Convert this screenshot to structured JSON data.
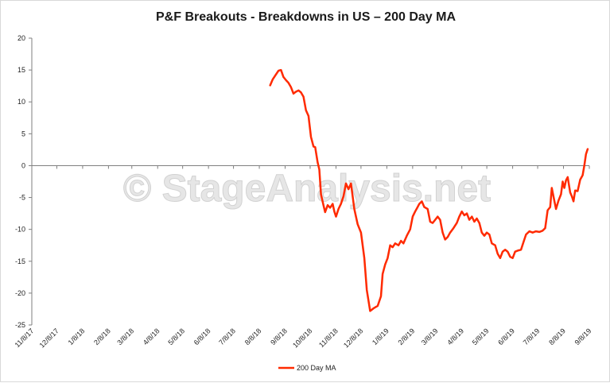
{
  "chart_data": {
    "type": "line",
    "title": "P&F Breakouts - Breakdowns in US – 200 Day MA",
    "watermark": "© StageAnalysis.net",
    "ylim": [
      -25,
      20
    ],
    "ytick_values": [
      20,
      15,
      10,
      5,
      0,
      -5,
      -10,
      -15,
      -20,
      -25
    ],
    "xlim": [
      "2017-11-08",
      "2019-09-08"
    ],
    "xtick_labels": [
      "11/8/17",
      "12/8/17",
      "1/8/18",
      "2/8/18",
      "3/8/18",
      "4/8/18",
      "5/8/18",
      "6/8/18",
      "7/8/18",
      "8/8/18",
      "9/8/18",
      "10/8/18",
      "11/8/18",
      "12/8/18",
      "1/8/19",
      "2/8/19",
      "3/8/19",
      "4/8/19",
      "5/8/19",
      "6/8/19",
      "7/8/19",
      "8/8/19",
      "9/8/19"
    ],
    "legend_position": "bottom",
    "gridlines": false,
    "series": [
      {
        "name": "200 Day MA",
        "color": "#ff2a00",
        "points": [
          [
            "2018-08-21",
            12.6
          ],
          [
            "2018-08-24",
            13.5
          ],
          [
            "2018-08-28",
            14.3
          ],
          [
            "2018-08-31",
            14.9
          ],
          [
            "2018-09-03",
            15.0
          ],
          [
            "2018-09-06",
            13.9
          ],
          [
            "2018-09-09",
            13.4
          ],
          [
            "2018-09-12",
            13.0
          ],
          [
            "2018-09-15",
            12.3
          ],
          [
            "2018-09-18",
            11.3
          ],
          [
            "2018-09-21",
            11.6
          ],
          [
            "2018-09-24",
            11.8
          ],
          [
            "2018-09-27",
            11.5
          ],
          [
            "2018-09-30",
            10.8
          ],
          [
            "2018-10-03",
            8.7
          ],
          [
            "2018-10-06",
            7.8
          ],
          [
            "2018-10-09",
            4.5
          ],
          [
            "2018-10-12",
            3.0
          ],
          [
            "2018-10-14",
            2.9
          ],
          [
            "2018-10-17",
            0.5
          ],
          [
            "2018-10-19",
            -0.6
          ],
          [
            "2018-10-21",
            -4.5
          ],
          [
            "2018-10-24",
            -6.2
          ],
          [
            "2018-10-26",
            -7.3
          ],
          [
            "2018-10-29",
            -6.2
          ],
          [
            "2018-11-01",
            -6.6
          ],
          [
            "2018-11-04",
            -6.0
          ],
          [
            "2018-11-06",
            -7.2
          ],
          [
            "2018-11-08",
            -8.0
          ],
          [
            "2018-11-11",
            -6.8
          ],
          [
            "2018-11-14",
            -6.0
          ],
          [
            "2018-11-17",
            -4.8
          ],
          [
            "2018-11-20",
            -2.8
          ],
          [
            "2018-11-23",
            -3.7
          ],
          [
            "2018-11-26",
            -2.8
          ],
          [
            "2018-11-30",
            -6.8
          ],
          [
            "2018-12-04",
            -9.2
          ],
          [
            "2018-12-08",
            -10.5
          ],
          [
            "2018-12-12",
            -14.5
          ],
          [
            "2018-12-15",
            -19.5
          ],
          [
            "2018-12-19",
            -22.8
          ],
          [
            "2018-12-23",
            -22.4
          ],
          [
            "2018-12-28",
            -22.0
          ],
          [
            "2019-01-01",
            -20.5
          ],
          [
            "2019-01-03",
            -17.0
          ],
          [
            "2019-01-06",
            -15.5
          ],
          [
            "2019-01-09",
            -14.5
          ],
          [
            "2019-01-12",
            -12.5
          ],
          [
            "2019-01-15",
            -12.8
          ],
          [
            "2019-01-18",
            -12.2
          ],
          [
            "2019-01-22",
            -12.5
          ],
          [
            "2019-01-25",
            -11.8
          ],
          [
            "2019-01-28",
            -12.2
          ],
          [
            "2019-02-01",
            -11.0
          ],
          [
            "2019-02-05",
            -10.0
          ],
          [
            "2019-02-08",
            -8.0
          ],
          [
            "2019-02-11",
            -7.2
          ],
          [
            "2019-02-14",
            -6.5
          ],
          [
            "2019-02-16",
            -6.0
          ],
          [
            "2019-02-19",
            -5.6
          ],
          [
            "2019-02-22",
            -6.5
          ],
          [
            "2019-02-26",
            -6.8
          ],
          [
            "2019-03-01",
            -8.8
          ],
          [
            "2019-03-04",
            -9.0
          ],
          [
            "2019-03-07",
            -8.5
          ],
          [
            "2019-03-10",
            -8.0
          ],
          [
            "2019-03-13",
            -8.5
          ],
          [
            "2019-03-16",
            -10.5
          ],
          [
            "2019-03-19",
            -11.6
          ],
          [
            "2019-03-22",
            -11.2
          ],
          [
            "2019-03-25",
            -10.5
          ],
          [
            "2019-03-29",
            -9.8
          ],
          [
            "2019-04-02",
            -9.0
          ],
          [
            "2019-04-05",
            -8.0
          ],
          [
            "2019-04-08",
            -7.2
          ],
          [
            "2019-04-11",
            -7.8
          ],
          [
            "2019-04-14",
            -7.5
          ],
          [
            "2019-04-17",
            -8.5
          ],
          [
            "2019-04-20",
            -8.0
          ],
          [
            "2019-04-23",
            -8.8
          ],
          [
            "2019-04-26",
            -8.3
          ],
          [
            "2019-04-29",
            -9.0
          ],
          [
            "2019-05-02",
            -10.5
          ],
          [
            "2019-05-05",
            -11.0
          ],
          [
            "2019-05-08",
            -10.5
          ],
          [
            "2019-05-11",
            -10.8
          ],
          [
            "2019-05-14",
            -12.2
          ],
          [
            "2019-05-18",
            -12.5
          ],
          [
            "2019-05-21",
            -13.8
          ],
          [
            "2019-05-24",
            -14.5
          ],
          [
            "2019-05-27",
            -13.5
          ],
          [
            "2019-05-30",
            -13.2
          ],
          [
            "2019-06-02",
            -13.5
          ],
          [
            "2019-06-05",
            -14.3
          ],
          [
            "2019-06-08",
            -14.5
          ],
          [
            "2019-06-11",
            -13.5
          ],
          [
            "2019-06-15",
            -13.3
          ],
          [
            "2019-06-18",
            -13.2
          ],
          [
            "2019-06-21",
            -12.0
          ],
          [
            "2019-06-24",
            -10.8
          ],
          [
            "2019-06-28",
            -10.3
          ],
          [
            "2019-07-02",
            -10.5
          ],
          [
            "2019-07-06",
            -10.3
          ],
          [
            "2019-07-10",
            -10.4
          ],
          [
            "2019-07-14",
            -10.2
          ],
          [
            "2019-07-17",
            -9.8
          ],
          [
            "2019-07-20",
            -7.0
          ],
          [
            "2019-07-23",
            -6.5
          ],
          [
            "2019-07-25",
            -3.5
          ],
          [
            "2019-07-28",
            -5.5
          ],
          [
            "2019-07-30",
            -6.8
          ],
          [
            "2019-08-02",
            -5.5
          ],
          [
            "2019-08-05",
            -4.5
          ],
          [
            "2019-08-07",
            -2.5
          ],
          [
            "2019-08-09",
            -3.5
          ],
          [
            "2019-08-11",
            -2.3
          ],
          [
            "2019-08-13",
            -1.8
          ],
          [
            "2019-08-16",
            -4.2
          ],
          [
            "2019-08-18",
            -4.8
          ],
          [
            "2019-08-20",
            -5.6
          ],
          [
            "2019-08-22",
            -3.9
          ],
          [
            "2019-08-25",
            -4.0
          ],
          [
            "2019-08-28",
            -2.2
          ],
          [
            "2019-08-31",
            -1.5
          ],
          [
            "2019-09-02",
            0.0
          ],
          [
            "2019-09-04",
            1.8
          ],
          [
            "2019-09-06",
            2.6
          ]
        ]
      }
    ]
  }
}
